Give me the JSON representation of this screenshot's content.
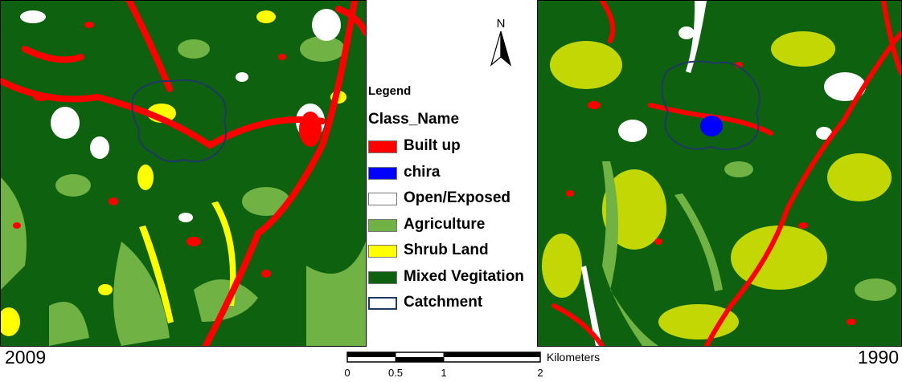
{
  "legend": {
    "title": "Legend",
    "field": "Class_Name",
    "items": [
      {
        "label": "Built up",
        "color": "#ff0000"
      },
      {
        "label": "chira",
        "color": "#0000ff"
      },
      {
        "label": "Open/Exposed",
        "color": "#ffffff"
      },
      {
        "label": "Agriculture",
        "color": "#70b244"
      },
      {
        "label": "Shrub Land",
        "color": "#ffff00"
      },
      {
        "label": "Mixed Vegitation",
        "color": "#0e610e"
      },
      {
        "label": "Catchment",
        "color": "#ffffff",
        "outline": "#1f3864"
      }
    ]
  },
  "north_arrow": {
    "label": "N"
  },
  "maps": {
    "left": {
      "year": "2009"
    },
    "right": {
      "year": "1990"
    }
  },
  "scale_bar": {
    "unit": "Kilometers",
    "ticks": [
      "0",
      "0.5",
      "1",
      "2"
    ]
  },
  "colors": {
    "built_up": "#ff0000",
    "water": "#0000ff",
    "open": "#ffffff",
    "agriculture": "#70b244",
    "shrub": "#ffff00",
    "mixed_vegetation": "#0e610e",
    "catchment_outline": "#1f3864"
  }
}
